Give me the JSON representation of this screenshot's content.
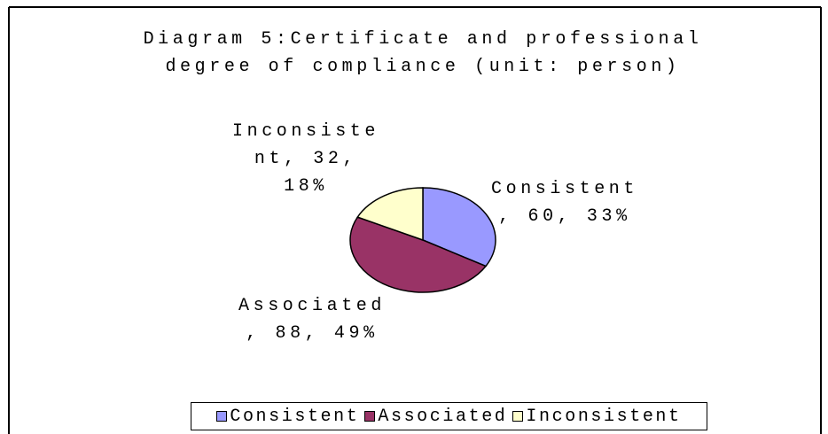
{
  "chart_data": {
    "type": "pie",
    "title": "Diagram 5:Certificate and professional degree of compliance (unit: person)",
    "categories": [
      "Consistent",
      "Associated",
      "Inconsistent"
    ],
    "values": [
      60,
      88,
      32
    ],
    "value_labels": [
      "Consistent, 60, 33%",
      "Associated, 88, 49%",
      "Inconsistent, 32, 18%"
    ],
    "colors": [
      "#9999ff",
      "#993366",
      "#ffffcc"
    ],
    "legend": "bottom"
  }
}
